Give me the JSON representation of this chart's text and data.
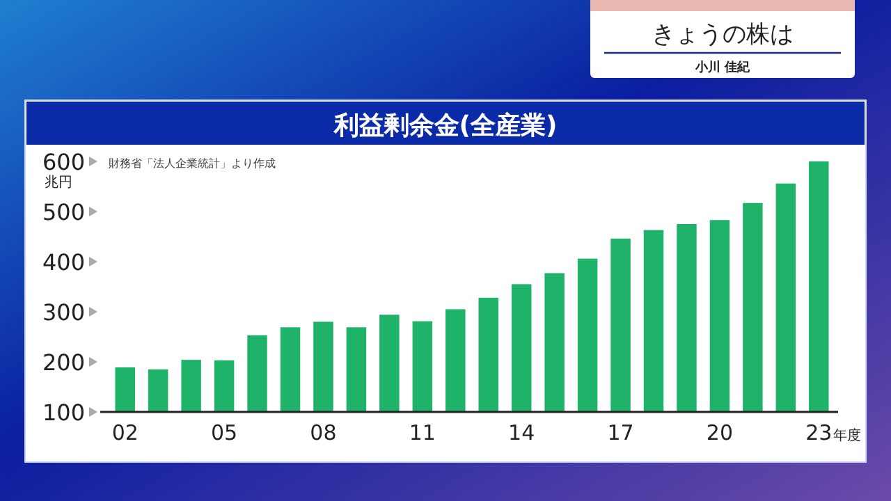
{
  "chart_data": {
    "type": "bar",
    "title": "利益剰余金(全産業)",
    "ylabel": "兆円",
    "xlabel": "年度",
    "annotations": [
      "財務省「法人企業統計」より作成",
      "きょうの株は",
      "小川 佳紀"
    ],
    "categories": [
      "02",
      null,
      null,
      "05",
      null,
      null,
      "08",
      null,
      null,
      "11",
      null,
      null,
      "14",
      null,
      null,
      "17",
      null,
      null,
      "20",
      null,
      null,
      "23"
    ],
    "values": [
      189,
      185,
      204,
      203,
      253,
      269,
      280,
      269,
      294,
      281,
      305,
      328,
      355,
      377,
      406,
      446,
      463,
      475,
      483,
      517,
      556,
      600
    ],
    "color": "#1fb36a",
    "ylim": [
      100,
      600
    ],
    "yticks": [
      100,
      200,
      300,
      400,
      500,
      600
    ],
    "grid": false
  }
}
